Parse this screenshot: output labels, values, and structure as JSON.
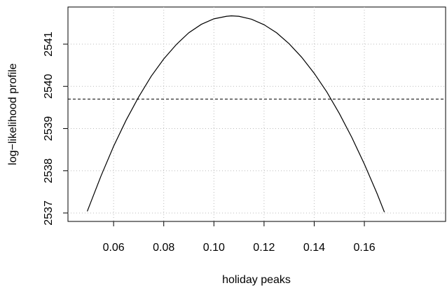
{
  "chart_data": {
    "type": "line",
    "x_label": "holiday peaks",
    "y_label": "log−likelihood profile",
    "x": [
      0.0495,
      0.055,
      0.06,
      0.065,
      0.07,
      0.075,
      0.08,
      0.085,
      0.09,
      0.095,
      0.1,
      0.105,
      0.107,
      0.11,
      0.115,
      0.12,
      0.125,
      0.13,
      0.135,
      0.14,
      0.145,
      0.15,
      0.155,
      0.16,
      0.165,
      0.168
    ],
    "series": [
      {
        "color": "#000000",
        "values": [
          2537.04,
          2537.88,
          2538.58,
          2539.2,
          2539.75,
          2540.24,
          2540.65,
          2540.99,
          2541.27,
          2541.47,
          2541.6,
          2541.66,
          2541.67,
          2541.66,
          2541.59,
          2541.46,
          2541.27,
          2541.01,
          2540.69,
          2540.31,
          2539.87,
          2539.36,
          2538.79,
          2538.16,
          2537.47,
          2537.02
        ]
      }
    ],
    "reference_line": 2539.7,
    "xlim": [
      0.0418,
      0.1924
    ],
    "ylim": [
      2536.8,
      2541.88
    ],
    "xticks": [
      {
        "value": 0.06,
        "label": "0.06"
      },
      {
        "value": 0.08,
        "label": "0.08"
      },
      {
        "value": 0.1,
        "label": "0.10"
      },
      {
        "value": 0.12,
        "label": "0.12"
      },
      {
        "value": 0.14,
        "label": "0.14"
      },
      {
        "value": 0.16,
        "label": "0.16"
      }
    ],
    "yticks": [
      2537,
      2538,
      2539,
      2540,
      2541
    ],
    "grid": true
  }
}
